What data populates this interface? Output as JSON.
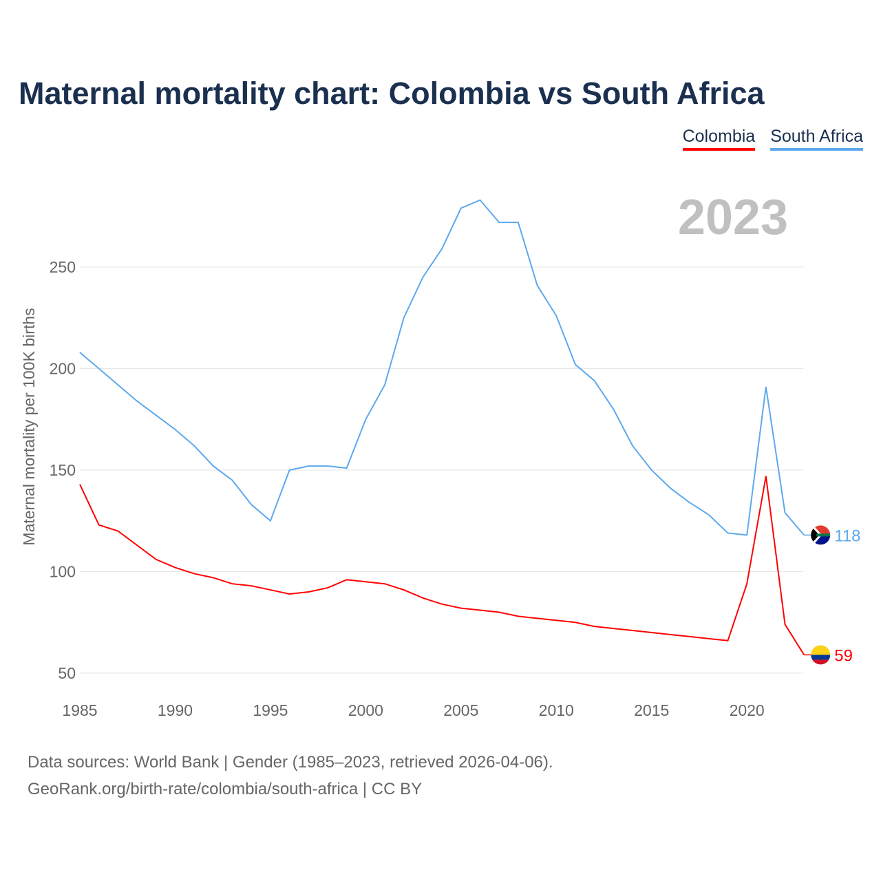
{
  "title": "Maternal mortality chart: Colombia vs South Africa",
  "footer": {
    "line1": "Data sources: World Bank | Gender (1985–2023, retrieved 2026-04-06).",
    "line2": "GeoRank.org/birth-rate/colombia/south-africa | CC BY"
  },
  "chart_data": {
    "type": "line",
    "title": "Maternal mortality chart: Colombia vs South Africa",
    "ylabel": "Maternal mortality per 100K births",
    "xlabel": "",
    "year_label": "2023",
    "ylim": [
      40,
      290
    ],
    "xlim": [
      1985,
      2023
    ],
    "yticks": [
      50,
      100,
      150,
      200,
      250
    ],
    "xticks": [
      1985,
      1990,
      1995,
      2000,
      2005,
      2010,
      2015,
      2020
    ],
    "grid": true,
    "legend_position": "top-right",
    "x": [
      1985,
      1986,
      1987,
      1988,
      1989,
      1990,
      1991,
      1992,
      1993,
      1994,
      1995,
      1996,
      1997,
      1998,
      1999,
      2000,
      2001,
      2002,
      2003,
      2004,
      2005,
      2006,
      2007,
      2008,
      2009,
      2010,
      2011,
      2012,
      2013,
      2014,
      2015,
      2016,
      2017,
      2018,
      2019,
      2020,
      2021,
      2022,
      2023
    ],
    "series": [
      {
        "name": "Colombia",
        "color": "#ff0000",
        "end_label": "59",
        "values": [
          143,
          123,
          120,
          113,
          106,
          102,
          99,
          97,
          94,
          93,
          91,
          89,
          90,
          92,
          96,
          95,
          94,
          91,
          87,
          84,
          82,
          81,
          80,
          78,
          77,
          76,
          75,
          73,
          72,
          71,
          70,
          69,
          68,
          67,
          66,
          94,
          147,
          74,
          59
        ]
      },
      {
        "name": "South Africa",
        "color": "#5da8ee",
        "end_label": "118",
        "values": [
          208,
          200,
          192,
          184,
          177,
          170,
          162,
          152,
          145,
          133,
          125,
          150,
          152,
          152,
          151,
          175,
          192,
          225,
          245,
          259,
          279,
          283,
          272,
          272,
          241,
          226,
          202,
          194,
          180,
          162,
          150,
          141,
          134,
          128,
          119,
          118,
          191,
          129,
          118
        ]
      }
    ]
  }
}
